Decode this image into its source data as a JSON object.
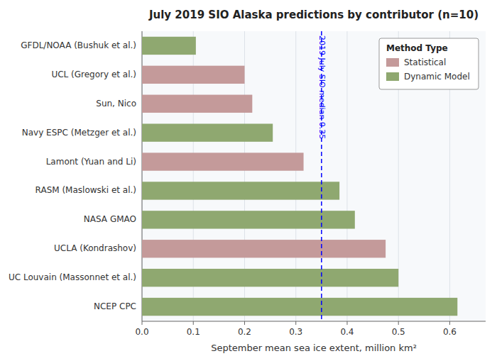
{
  "chart_data": {
    "type": "bar",
    "orientation": "horizontal",
    "stacked": true,
    "title": "July 2019 SIO Alaska predictions by contributor (n=10)",
    "xlabel": "September mean sea ice extent, million km²",
    "categories": [
      "GFDL/NOAA (Bushuk et al.)",
      "UCL (Gregory et al.)",
      "Sun, Nico",
      "Navy ESPC (Metzger et al.)",
      "Lamont (Yuan and Li)",
      "RASM (Maslowski et al.)",
      "NASA GMAO",
      "UCLA (Kondrashov)",
      "UC Louvain (Massonnet et al.)",
      "NCEP CPC"
    ],
    "series": [
      {
        "name": "Statistical",
        "color": "#c49a9a",
        "values": [
          null,
          0.2,
          0.215,
          null,
          0.315,
          null,
          null,
          0.475,
          null,
          null
        ]
      },
      {
        "name": "Dynamic Model",
        "color": "#8fa870",
        "values": [
          0.105,
          null,
          null,
          0.255,
          null,
          0.385,
          0.415,
          null,
          0.5,
          0.615
        ]
      }
    ],
    "legend_title": "Method Type",
    "legend": "top-right",
    "annotations": [
      {
        "text": "2019 July SIO median 0.35",
        "x": 0.35,
        "color": "blue",
        "line_style": "dashed"
      }
    ],
    "xlim": [
      0.0,
      0.67
    ],
    "xticks": [
      {
        "value": 0.0,
        "label": "0.0"
      },
      0.1,
      0.2,
      0.3,
      0.4,
      0.5,
      0.6
    ],
    "grid": true
  }
}
